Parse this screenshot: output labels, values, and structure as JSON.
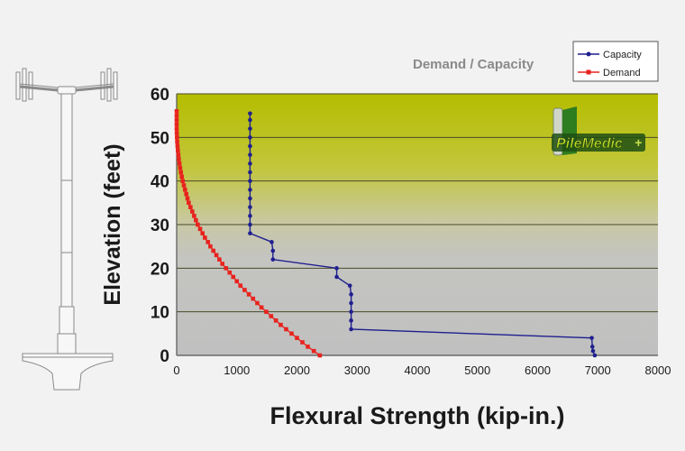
{
  "chart_data": {
    "type": "line",
    "title": "Demand / Capacity",
    "xlabel": "Flexural Strength (kip-in.)",
    "ylabel": "Elevation (feet)",
    "xlim": [
      0,
      8000
    ],
    "ylim": [
      0,
      60
    ],
    "x_ticks": [
      "0",
      "1000",
      "2000",
      "3000",
      "4000",
      "5000",
      "6000",
      "7000",
      "8000"
    ],
    "y_ticks": [
      "0",
      "10",
      "20",
      "30",
      "40",
      "50",
      "60"
    ],
    "grid": "horizontal",
    "legend_position": "top-right",
    "series": [
      {
        "name": "Capacity",
        "color": "#1f1f8f",
        "points": [
          [
            6950,
            0
          ],
          [
            6920,
            1
          ],
          [
            6910,
            2
          ],
          [
            6900,
            4
          ],
          [
            2900,
            6
          ],
          [
            2900,
            8
          ],
          [
            2900,
            10
          ],
          [
            2900,
            12
          ],
          [
            2900,
            14
          ],
          [
            2880,
            16
          ],
          [
            2660,
            18
          ],
          [
            2660,
            20
          ],
          [
            1600,
            22
          ],
          [
            1600,
            24
          ],
          [
            1580,
            26
          ],
          [
            1220,
            28
          ],
          [
            1220,
            30
          ],
          [
            1220,
            32
          ],
          [
            1220,
            34
          ],
          [
            1220,
            36
          ],
          [
            1220,
            38
          ],
          [
            1220,
            40
          ],
          [
            1220,
            42
          ],
          [
            1220,
            44
          ],
          [
            1220,
            46
          ],
          [
            1220,
            48
          ],
          [
            1220,
            50
          ],
          [
            1220,
            52
          ],
          [
            1220,
            54
          ],
          [
            1220,
            55.5
          ]
        ]
      },
      {
        "name": "Demand",
        "color": "#e8231e",
        "points": [
          [
            2380,
            0
          ],
          [
            2280,
            1
          ],
          [
            2180,
            2
          ],
          [
            2090,
            3
          ],
          [
            2000,
            4
          ],
          [
            1910,
            5
          ],
          [
            1820,
            6
          ],
          [
            1730,
            7
          ],
          [
            1650,
            8
          ],
          [
            1570,
            9
          ],
          [
            1490,
            10
          ],
          [
            1410,
            11
          ],
          [
            1340,
            12
          ],
          [
            1270,
            13
          ],
          [
            1200,
            14
          ],
          [
            1130,
            15
          ],
          [
            1060,
            16
          ],
          [
            1000,
            17
          ],
          [
            940,
            18
          ],
          [
            880,
            19
          ],
          [
            820,
            20
          ],
          [
            760,
            21
          ],
          [
            710,
            22
          ],
          [
            660,
            23
          ],
          [
            610,
            24
          ],
          [
            560,
            25
          ],
          [
            520,
            26
          ],
          [
            470,
            27
          ],
          [
            430,
            28
          ],
          [
            390,
            29
          ],
          [
            350,
            30
          ],
          [
            320,
            31
          ],
          [
            290,
            32
          ],
          [
            260,
            33
          ],
          [
            230,
            34
          ],
          [
            200,
            35
          ],
          [
            180,
            36
          ],
          [
            160,
            37
          ],
          [
            140,
            38
          ],
          [
            120,
            39
          ],
          [
            100,
            40
          ],
          [
            85,
            41
          ],
          [
            70,
            42
          ],
          [
            58,
            43
          ],
          [
            46,
            44
          ],
          [
            36,
            45
          ],
          [
            28,
            46
          ],
          [
            20,
            47
          ],
          [
            14,
            48
          ],
          [
            9,
            49
          ],
          [
            5,
            50
          ],
          [
            2,
            51
          ],
          [
            0,
            52
          ],
          [
            0,
            53
          ],
          [
            0,
            54
          ],
          [
            0,
            55
          ],
          [
            0,
            56
          ]
        ]
      }
    ]
  },
  "logo": {
    "text": "PileMedic"
  },
  "illustration": {
    "icon": "utility-pole-icon"
  }
}
